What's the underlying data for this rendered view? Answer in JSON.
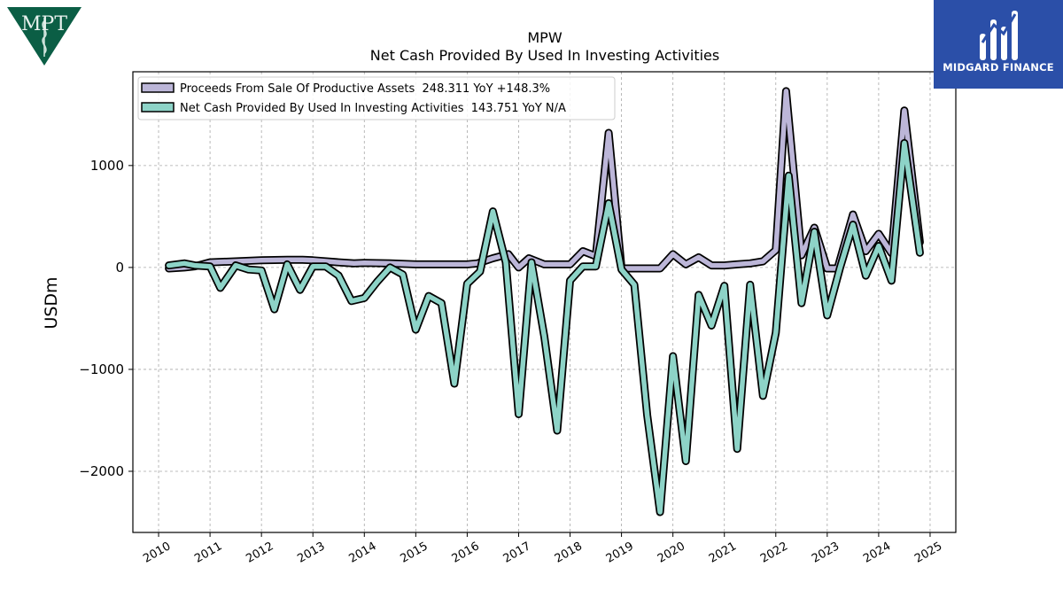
{
  "branding": {
    "company_logo_text": "MPT",
    "brand_name": "MIDGARD FINANCE",
    "colors": {
      "company_logo": "#0b5e45",
      "brand_bg": "#2b4fa8"
    }
  },
  "chart_data": {
    "type": "line",
    "title": "MPW",
    "subtitle": "Net Cash Provided By Used In Investing Activities",
    "xlabel": "",
    "ylabel": "USDm",
    "xlim": [
      2009.5,
      2025.5
    ],
    "ylim": [
      -2600,
      1920
    ],
    "x_ticks": [
      "2010",
      "2011",
      "2012",
      "2013",
      "2014",
      "2015",
      "2016",
      "2017",
      "2018",
      "2019",
      "2020",
      "2021",
      "2022",
      "2023",
      "2024",
      "2025"
    ],
    "y_ticks": [
      {
        "value": 1000,
        "label": "1000"
      },
      {
        "value": 0,
        "label": "0"
      },
      {
        "value": -1000,
        "label": "−1000"
      },
      {
        "value": -2000,
        "label": "−2000"
      }
    ],
    "grid": true,
    "legend_position": "top-left",
    "series": [
      {
        "name": "Proceeds From Sale Of Productive Assets  248.311 YoY +148.3%",
        "color": "#bcb6d8",
        "x": [
          2010.2,
          2010.5,
          2010.7,
          2011.0,
          2011.5,
          2012.0,
          2012.5,
          2012.8,
          2013.0,
          2013.5,
          2013.8,
          2014.0,
          2014.5,
          2015.0,
          2015.5,
          2016.0,
          2016.2,
          2016.5,
          2016.8,
          2017.0,
          2017.2,
          2017.5,
          2017.7,
          2018.0,
          2018.25,
          2018.5,
          2018.75,
          2019.0,
          2019.25,
          2019.5,
          2019.75,
          2020.0,
          2020.25,
          2020.5,
          2020.75,
          2021.0,
          2021.25,
          2021.5,
          2021.75,
          2022.0,
          2022.2,
          2022.5,
          2022.75,
          2023.0,
          2023.2,
          2023.5,
          2023.75,
          2024.0,
          2024.25,
          2024.5,
          2024.8
        ],
        "y": [
          -10,
          0,
          10,
          50,
          60,
          70,
          75,
          75,
          70,
          50,
          40,
          45,
          40,
          30,
          30,
          30,
          40,
          90,
          130,
          0,
          90,
          30,
          30,
          30,
          160,
          110,
          1320,
          -10,
          -10,
          -10,
          -10,
          130,
          30,
          100,
          20,
          20,
          30,
          40,
          60,
          170,
          1730,
          120,
          390,
          -10,
          -10,
          520,
          160,
          330,
          140,
          1540,
          248.311
        ]
      },
      {
        "name": "Net Cash Provided By Used In Investing Activities  143.751 YoY N/A",
        "color": "#8dd3c7",
        "x": [
          2010.2,
          2010.5,
          2010.7,
          2011.0,
          2011.2,
          2011.5,
          2011.75,
          2012.0,
          2012.25,
          2012.5,
          2012.75,
          2013.0,
          2013.25,
          2013.5,
          2013.75,
          2014.0,
          2014.25,
          2014.5,
          2014.75,
          2015.0,
          2015.25,
          2015.5,
          2015.75,
          2016.0,
          2016.25,
          2016.5,
          2016.75,
          2017.0,
          2017.25,
          2017.5,
          2017.75,
          2018.0,
          2018.25,
          2018.5,
          2018.75,
          2019.0,
          2019.25,
          2019.5,
          2019.75,
          2020.0,
          2020.25,
          2020.5,
          2020.75,
          2021.0,
          2021.25,
          2021.5,
          2021.75,
          2022.0,
          2022.25,
          2022.5,
          2022.75,
          2023.0,
          2023.25,
          2023.5,
          2023.75,
          2024.0,
          2024.25,
          2024.5,
          2024.8
        ],
        "y": [
          20,
          40,
          20,
          10,
          -200,
          20,
          -20,
          -30,
          -410,
          30,
          -220,
          10,
          10,
          -80,
          -330,
          -300,
          -140,
          0,
          -70,
          -610,
          -280,
          -350,
          -1140,
          -160,
          -40,
          550,
          50,
          -1440,
          50,
          -680,
          -1600,
          -130,
          10,
          10,
          630,
          -20,
          -170,
          -1450,
          -2400,
          -870,
          -1900,
          -270,
          -570,
          -180,
          -1780,
          -170,
          -1260,
          -640,
          900,
          -350,
          350,
          -470,
          0,
          420,
          -80,
          210,
          -130,
          1220,
          143.751
        ]
      }
    ]
  }
}
